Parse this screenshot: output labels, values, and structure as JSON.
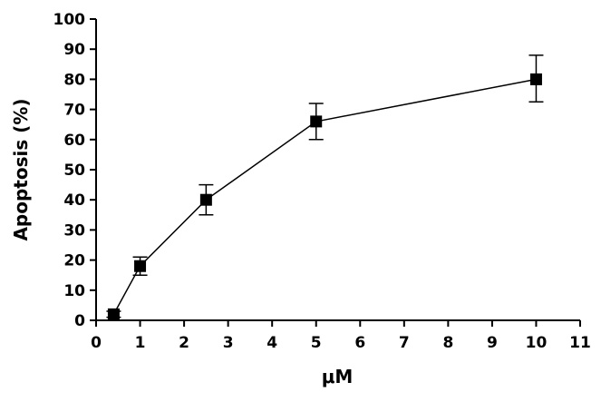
{
  "chart_data": {
    "type": "scatter",
    "title": "",
    "xlabel": "μM",
    "ylabel": "Apoptosis (%)",
    "xlim": [
      0,
      11
    ],
    "ylim": [
      0,
      100
    ],
    "xticks": [
      0,
      1,
      2,
      3,
      4,
      5,
      6,
      7,
      8,
      9,
      10,
      11
    ],
    "yticks": [
      0,
      10,
      20,
      30,
      40,
      50,
      60,
      70,
      80,
      90,
      100
    ],
    "grid": false,
    "legend": "none",
    "series": [
      {
        "x": [
          0.4,
          1,
          2.5,
          5,
          10
        ],
        "y": [
          2,
          18,
          40,
          66,
          80
        ],
        "error_upper": [
          3,
          21,
          45,
          72,
          88
        ],
        "error_lower": [
          1,
          15,
          35,
          60,
          72.5
        ],
        "marker": "square",
        "color": "#000000",
        "connected": true
      }
    ]
  }
}
